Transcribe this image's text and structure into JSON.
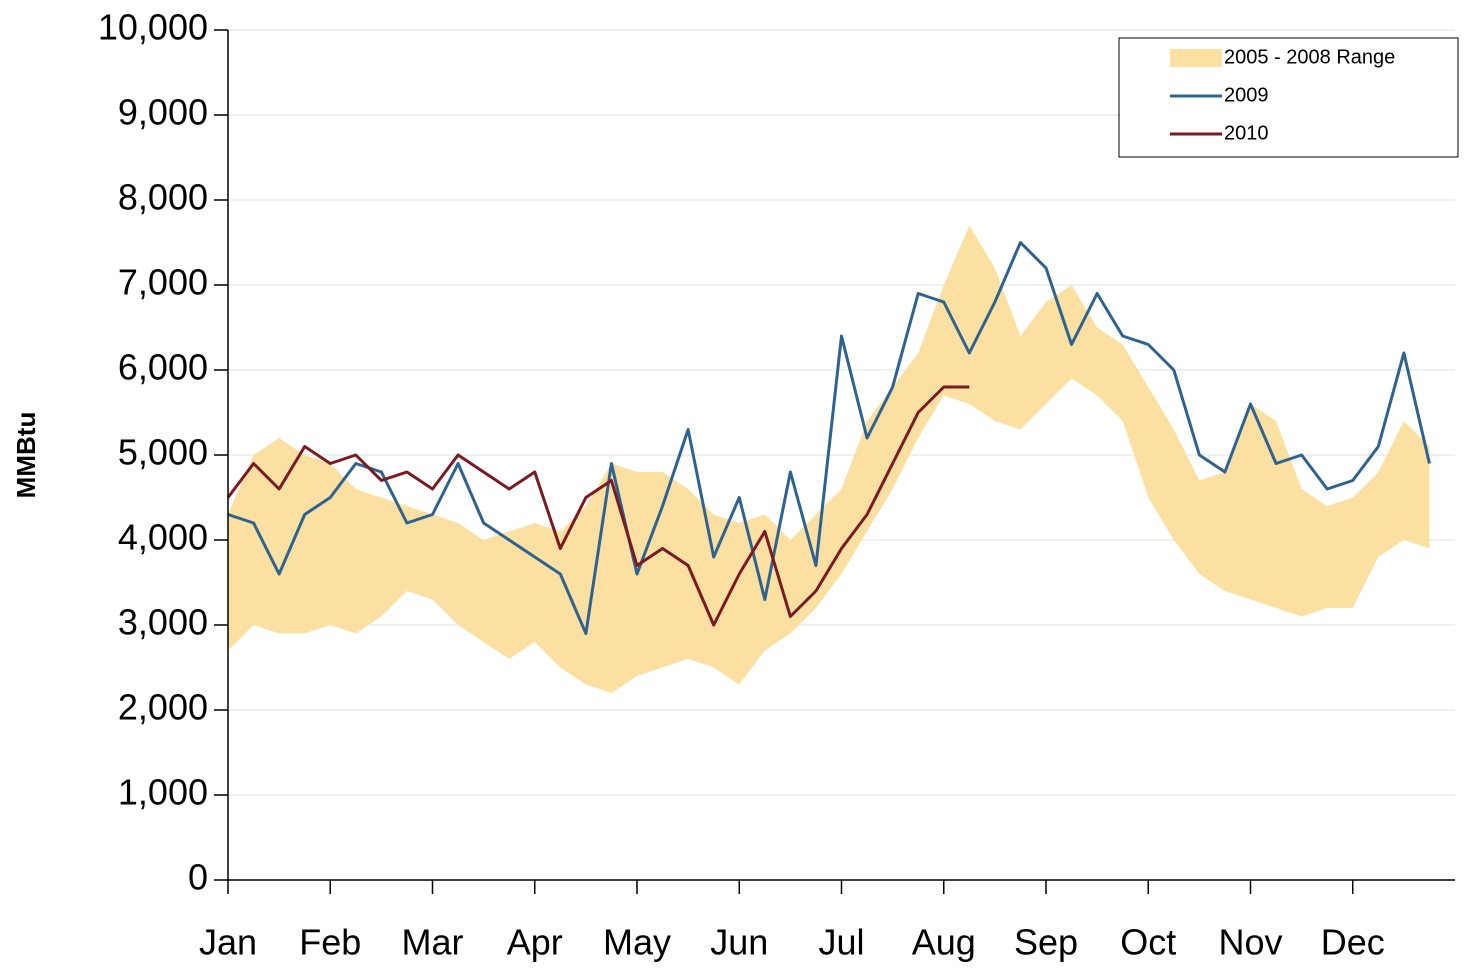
{
  "chart_data": {
    "type": "line",
    "y_label": "MMBtu",
    "categories": [
      "Jan",
      null,
      null,
      null,
      "Feb",
      null,
      null,
      null,
      "Mar",
      null,
      null,
      null,
      "Apr",
      null,
      null,
      null,
      "May",
      null,
      null,
      null,
      "Jun",
      null,
      null,
      null,
      "Jul",
      null,
      null,
      null,
      "Aug",
      null,
      null,
      null,
      "Sep",
      null,
      null,
      null,
      "Oct",
      null,
      null,
      null,
      "Nov",
      null,
      null,
      null,
      "Dec",
      null,
      null,
      null
    ],
    "series": [
      {
        "name": "2005 - 2008 Range",
        "color": "#fbe0a2",
        "low": [
          2700,
          3000,
          2900,
          2900,
          3000,
          2900,
          3100,
          3400,
          3300,
          3000,
          2800,
          2600,
          2800,
          2500,
          2300,
          2200,
          2400,
          2500,
          2600,
          2500,
          2300,
          2700,
          2900,
          3200,
          3600,
          4100,
          4600,
          5200,
          5700,
          5600,
          5400,
          5300,
          5600,
          5900,
          5700,
          5400,
          4500,
          4000,
          3600,
          3400,
          3300,
          3200,
          3100,
          3200,
          3200,
          3800,
          4000,
          3900
        ],
        "high": [
          4300,
          5000,
          5200,
          5000,
          4900,
          4600,
          4500,
          4400,
          4300,
          4200,
          4000,
          4100,
          4200,
          4100,
          4400,
          4900,
          4800,
          4800,
          4600,
          4300,
          4200,
          4300,
          4000,
          4300,
          4600,
          5400,
          5800,
          6200,
          7000,
          7700,
          7200,
          6400,
          6800,
          7000,
          6500,
          6300,
          5800,
          5300,
          4700,
          4800,
          5600,
          5400,
          4600,
          4400,
          4500,
          4800,
          5400,
          5100
        ]
      },
      {
        "name": "2009",
        "color": "#2e6391",
        "values": [
          4300,
          4200,
          3600,
          4300,
          4500,
          4900,
          4800,
          4200,
          4300,
          4900,
          4200,
          4000,
          3800,
          3600,
          2900,
          4900,
          3600,
          4400,
          5300,
          3800,
          4500,
          3300,
          4800,
          3700,
          6400,
          5200,
          5800,
          6900,
          6800,
          6200,
          6800,
          7500,
          7200,
          6300,
          6900,
          6400,
          6300,
          6000,
          5000,
          4800,
          5600,
          4900,
          5000,
          4600,
          4700,
          5100,
          6200,
          4900
        ]
      },
      {
        "name": "2010",
        "color": "#7b1a21",
        "values": [
          4500,
          4900,
          4600,
          5100,
          4900,
          5000,
          4700,
          4800,
          4600,
          5000,
          4800,
          4600,
          4800,
          3900,
          4500,
          4700,
          3700,
          3900,
          3700,
          3000,
          3600,
          4100,
          3100,
          3400,
          3900,
          4300,
          4900,
          5500,
          5800,
          5800,
          null,
          null,
          null,
          null,
          null,
          null,
          null,
          null,
          null,
          null,
          null,
          null,
          null,
          null,
          null,
          null,
          null,
          null
        ]
      }
    ],
    "ylim": [
      0,
      10000
    ],
    "yticks": [
      0,
      {
        "value": 1000,
        "label": "1,000"
      },
      {
        "value": 2000,
        "label": "2,000"
      },
      {
        "value": 3000,
        "label": "3,000"
      },
      {
        "value": 4000,
        "label": "4,000"
      },
      {
        "value": 5000,
        "label": "5,000"
      },
      {
        "value": 6000,
        "label": "6,000"
      },
      {
        "value": 7000,
        "label": "7,000"
      },
      {
        "value": 8000,
        "label": "8,000"
      },
      {
        "value": 9000,
        "label": "9,000"
      },
      {
        "value": 10000,
        "label": "10,000"
      }
    ],
    "grid": true,
    "legend": "top-right"
  }
}
